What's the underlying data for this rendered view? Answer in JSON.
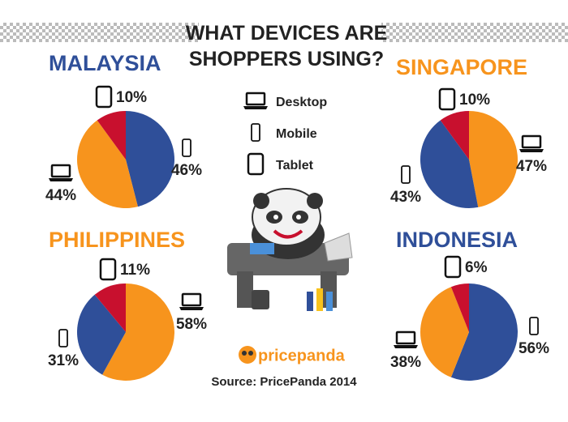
{
  "title": "WHAT DEVICES ARE SHOPPERS USING?",
  "legend": [
    "Desktop",
    "Mobile",
    "Tablet"
  ],
  "logo": "pricepanda",
  "source": "Source: PricePanda 2014",
  "chart_data": [
    {
      "type": "pie",
      "title": "MALAYSIA",
      "title_color": "#2f4f99",
      "values": [
        44,
        46,
        10
      ],
      "value_labels": [
        "44%",
        "46%",
        "10%"
      ],
      "colors": [
        "#f7941d",
        "#2f4f99",
        "#c8102e"
      ]
    },
    {
      "type": "pie",
      "title": "SINGAPORE",
      "title_color": "#f7941d",
      "values": [
        47,
        43,
        10
      ],
      "value_labels": [
        "47%",
        "43%",
        "10%"
      ],
      "colors": [
        "#f7941d",
        "#2f4f99",
        "#c8102e"
      ]
    },
    {
      "type": "pie",
      "title": "PHILIPPINES",
      "title_color": "#f7941d",
      "values": [
        58,
        31,
        11
      ],
      "value_labels": [
        "58%",
        "31%",
        "11%"
      ],
      "colors": [
        "#f7941d",
        "#2f4f99",
        "#c8102e"
      ]
    },
    {
      "type": "pie",
      "title": "INDONESIA",
      "title_color": "#2f4f99",
      "values": [
        38,
        56,
        6
      ],
      "value_labels": [
        "38%",
        "56%",
        "6%"
      ],
      "colors": [
        "#f7941d",
        "#2f4f99",
        "#c8102e"
      ]
    }
  ]
}
